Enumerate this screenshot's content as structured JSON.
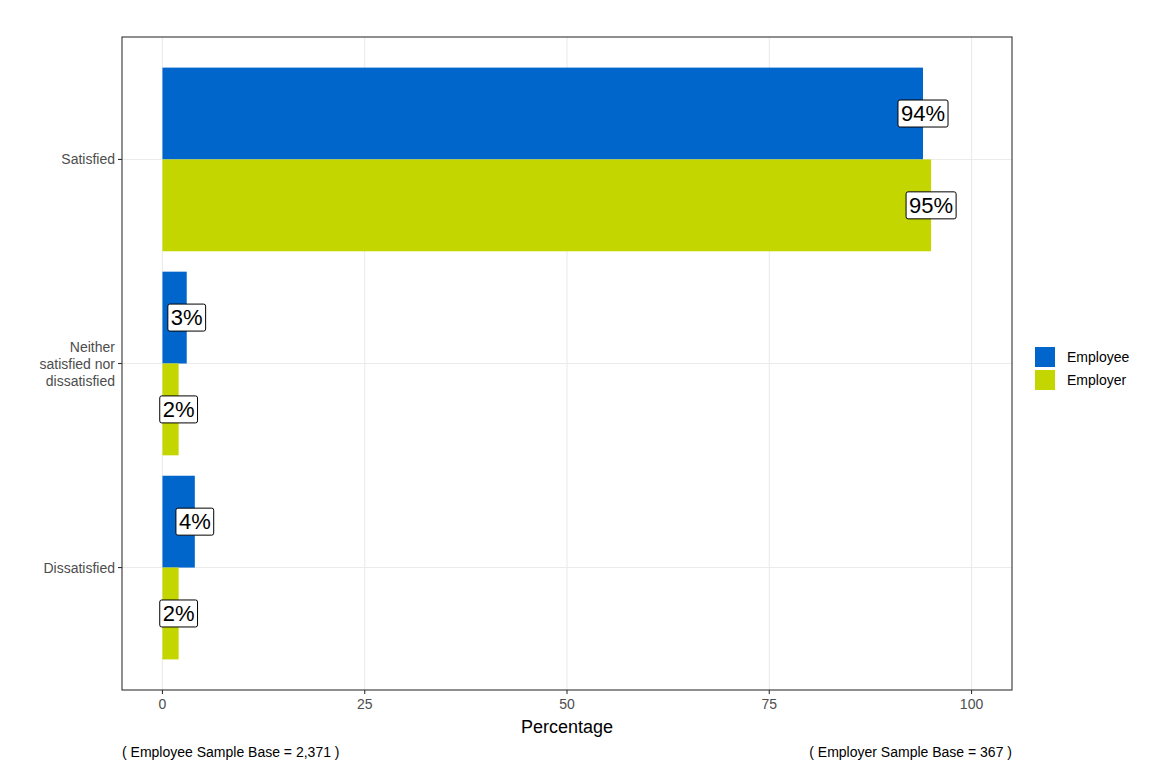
{
  "chart_data": {
    "type": "bar",
    "orientation": "horizontal",
    "categories": [
      "Satisfied",
      "Neither satisfied nor dissatisfied",
      "Dissatisfied"
    ],
    "series": [
      {
        "name": "Employee",
        "color": "#0066cc",
        "values": [
          94,
          3,
          4
        ],
        "value_labels": [
          "94%",
          "3%",
          "4%"
        ]
      },
      {
        "name": "Employer",
        "color": "#c4d600",
        "values": [
          95,
          2,
          2
        ],
        "value_labels": [
          "95%",
          "2%",
          "2%"
        ]
      }
    ],
    "xlabel": "Percentage",
    "xlim": [
      -5,
      105
    ],
    "xticks": [
      0,
      25,
      50,
      75,
      100
    ],
    "grid": true,
    "legend": "right",
    "data_labels": true,
    "annotations": [
      "( Employee Sample Base =  2,371 )",
      "( Employer Sample Base =  367 )"
    ]
  }
}
